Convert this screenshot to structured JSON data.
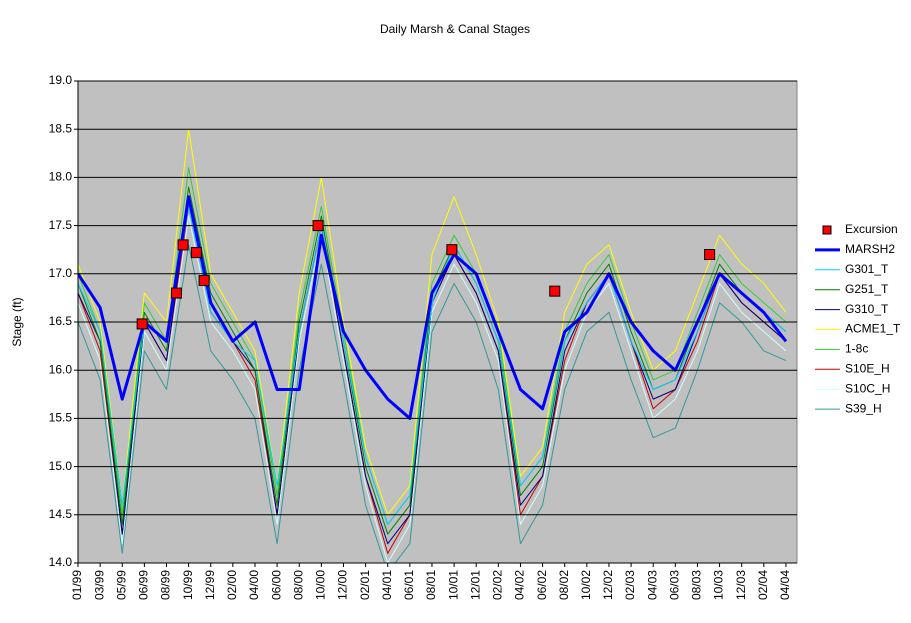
{
  "chart_data": {
    "type": "line",
    "title": "Daily Marsh & Canal Stages",
    "y_label": "Stage (ft)",
    "x": [
      0,
      2,
      4,
      6,
      8,
      10,
      12,
      14,
      16,
      18,
      20,
      22,
      24,
      26,
      28,
      30,
      32,
      34,
      36,
      38,
      40,
      42,
      44,
      46,
      48,
      50,
      52,
      54,
      56,
      58,
      60,
      62,
      64
    ],
    "xlim": [
      0,
      65
    ],
    "xticks": [
      {
        "value": 0,
        "label": "01/99"
      },
      {
        "value": 2,
        "label": "03/99"
      },
      {
        "value": 4,
        "label": "05/99"
      },
      {
        "value": 6,
        "label": "06/99"
      },
      {
        "value": 8,
        "label": "08/99"
      },
      {
        "value": 10,
        "label": "10/99"
      },
      {
        "value": 12,
        "label": "12/99"
      },
      {
        "value": 14,
        "label": "02/00"
      },
      {
        "value": 16,
        "label": "04/00"
      },
      {
        "value": 18,
        "label": "06/00"
      },
      {
        "value": 20,
        "label": "08/00"
      },
      {
        "value": 22,
        "label": "10/00"
      },
      {
        "value": 24,
        "label": "12/00"
      },
      {
        "value": 26,
        "label": "02/01"
      },
      {
        "value": 28,
        "label": "04/01"
      },
      {
        "value": 30,
        "label": "06/01"
      },
      {
        "value": 32,
        "label": "08/01"
      },
      {
        "value": 34,
        "label": "10/01"
      },
      {
        "value": 36,
        "label": "12/01"
      },
      {
        "value": 38,
        "label": "02/02"
      },
      {
        "value": 40,
        "label": "04/02"
      },
      {
        "value": 42,
        "label": "06/02"
      },
      {
        "value": 44,
        "label": "08/02"
      },
      {
        "value": 46,
        "label": "10/02"
      },
      {
        "value": 48,
        "label": "12/02"
      },
      {
        "value": 50,
        "label": "02/03"
      },
      {
        "value": 52,
        "label": "04/03"
      },
      {
        "value": 54,
        "label": "06/03"
      },
      {
        "value": 56,
        "label": "08/03"
      },
      {
        "value": 58,
        "label": "10/03"
      },
      {
        "value": 60,
        "label": "12/03"
      },
      {
        "value": 62,
        "label": "02/04"
      },
      {
        "value": 64,
        "label": "04/04"
      }
    ],
    "ylim": [
      14,
      19
    ],
    "yticks": [
      {
        "value": 14,
        "label": "14.0"
      },
      14.5,
      {
        "value": 15,
        "label": "15.0"
      },
      15.5,
      {
        "value": 16,
        "label": "16.0"
      },
      16.5,
      {
        "value": 17,
        "label": "17.0"
      },
      17.5,
      {
        "value": 18,
        "label": "18.0"
      },
      18.5,
      {
        "value": 19,
        "label": "19.0"
      }
    ],
    "grid": true,
    "legend": "right",
    "series": [
      {
        "name": "Excursion",
        "color": "#ff0000",
        "marker": "square",
        "x": [
          5.8,
          8.9,
          9.5,
          10.7,
          11.4,
          21.7,
          33.8,
          43.1,
          57.1
        ],
        "values": [
          16.48,
          16.8,
          17.3,
          17.22,
          16.93,
          17.5,
          17.25,
          16.82,
          17.2
        ]
      },
      {
        "name": "MARSH2",
        "color": "#0000ff",
        "line_width": 3,
        "values": [
          17.0,
          16.65,
          15.7,
          16.5,
          16.3,
          17.8,
          16.7,
          16.3,
          16.5,
          15.8,
          15.8,
          17.4,
          16.4,
          16.0,
          15.7,
          15.5,
          16.8,
          17.2,
          17.0,
          16.4,
          15.8,
          15.6,
          16.4,
          16.6,
          17.0,
          16.5,
          16.2,
          16.0,
          16.5,
          17.0,
          16.8,
          16.6,
          16.3
        ]
      },
      {
        "name": "G301_T",
        "color": "#00ccff",
        "values": [
          16.9,
          16.4,
          14.6,
          16.5,
          16.3,
          17.7,
          16.6,
          16.3,
          16.1,
          14.8,
          16.4,
          17.5,
          16.3,
          15.1,
          14.4,
          14.7,
          16.7,
          17.3,
          16.9,
          16.3,
          14.8,
          15.1,
          16.3,
          16.7,
          17.0,
          16.3,
          15.8,
          15.9,
          16.4,
          17.0,
          16.8,
          16.6,
          16.4
        ]
      },
      {
        "name": "G251_T",
        "color": "#008000",
        "values": [
          16.9,
          16.3,
          14.4,
          16.6,
          16.2,
          17.9,
          16.8,
          16.4,
          16.0,
          14.6,
          16.5,
          17.6,
          16.3,
          15.0,
          14.3,
          14.6,
          16.8,
          17.3,
          16.9,
          16.3,
          14.7,
          15.0,
          16.3,
          16.8,
          17.1,
          16.4,
          15.8,
          15.9,
          16.5,
          17.1,
          16.8,
          16.6,
          16.4
        ]
      },
      {
        "name": "G310_T",
        "color": "#000080",
        "values": [
          16.8,
          16.3,
          14.3,
          16.5,
          16.1,
          17.8,
          16.7,
          16.3,
          16.0,
          14.5,
          16.4,
          17.5,
          16.2,
          14.9,
          14.2,
          14.5,
          16.7,
          17.2,
          16.8,
          16.2,
          14.6,
          14.9,
          16.2,
          16.7,
          17.0,
          16.3,
          15.7,
          15.8,
          16.4,
          17.0,
          16.7,
          16.5,
          16.3
        ]
      },
      {
        "name": "ACME1_T",
        "color": "#ffff00",
        "values": [
          17.1,
          16.5,
          14.6,
          16.8,
          16.5,
          18.5,
          17.0,
          16.6,
          16.2,
          14.8,
          16.8,
          18.0,
          16.5,
          15.2,
          14.5,
          14.8,
          17.2,
          17.8,
          17.2,
          16.5,
          14.9,
          15.2,
          16.6,
          17.1,
          17.3,
          16.6,
          16.0,
          16.2,
          16.8,
          17.4,
          17.1,
          16.9,
          16.6
        ]
      },
      {
        "name": "1-8c",
        "color": "#33cc33",
        "values": [
          17.0,
          16.4,
          14.5,
          16.7,
          16.3,
          18.1,
          16.9,
          16.5,
          16.1,
          14.7,
          16.6,
          17.7,
          16.4,
          15.1,
          14.4,
          14.7,
          16.9,
          17.4,
          17.0,
          16.4,
          14.8,
          15.1,
          16.4,
          16.9,
          17.2,
          16.5,
          15.9,
          16.0,
          16.6,
          17.2,
          16.9,
          16.7,
          16.5
        ]
      },
      {
        "name": "S10E_H",
        "color": "#cc0000",
        "values": [
          16.8,
          16.2,
          14.3,
          16.5,
          16.1,
          17.7,
          16.6,
          16.3,
          15.9,
          14.5,
          16.4,
          17.5,
          16.2,
          14.9,
          14.1,
          14.5,
          16.7,
          17.2,
          16.8,
          16.2,
          14.5,
          14.9,
          16.1,
          16.7,
          17.0,
          16.3,
          15.6,
          15.8,
          16.3,
          17.0,
          16.7,
          16.5,
          16.3
        ]
      },
      {
        "name": "S10C_H",
        "color": "#ccffff",
        "values": [
          16.7,
          16.1,
          14.2,
          16.4,
          16.0,
          17.6,
          16.5,
          16.2,
          15.8,
          14.4,
          16.3,
          17.4,
          16.1,
          14.8,
          14.0,
          14.4,
          16.6,
          17.1,
          16.7,
          16.1,
          14.4,
          14.8,
          16.0,
          16.6,
          16.9,
          16.2,
          15.5,
          15.7,
          16.2,
          16.9,
          16.6,
          16.4,
          16.2
        ]
      },
      {
        "name": "S39_H",
        "color": "#339999",
        "values": [
          16.5,
          15.9,
          14.1,
          16.2,
          15.8,
          17.3,
          16.2,
          15.9,
          15.5,
          14.2,
          16.0,
          17.1,
          15.9,
          14.6,
          13.9,
          14.2,
          16.4,
          16.9,
          16.5,
          15.8,
          14.2,
          14.6,
          15.8,
          16.4,
          16.6,
          15.9,
          15.3,
          15.4,
          16.0,
          16.7,
          16.5,
          16.2,
          16.1
        ]
      }
    ]
  }
}
